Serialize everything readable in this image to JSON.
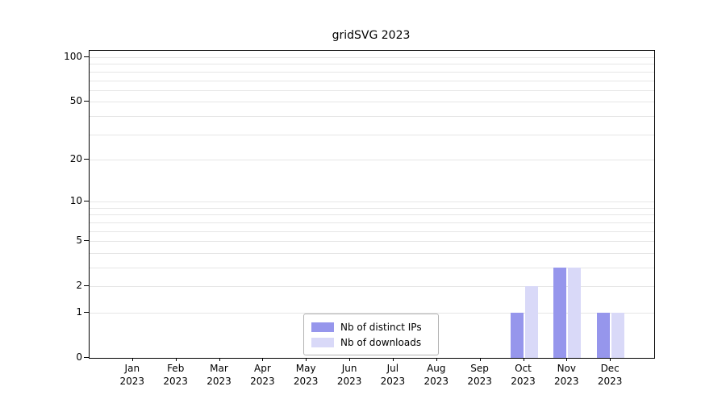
{
  "chart": {
    "title": "gridSVG 2023",
    "chart_data": {
      "type": "bar",
      "title": "gridSVG 2023",
      "scale": "log1p",
      "categories": [
        "Jan",
        "Feb",
        "Mar",
        "Apr",
        "May",
        "Jun",
        "Jul",
        "Aug",
        "Sep",
        "Oct",
        "Nov",
        "Dec"
      ],
      "category_year": "2023",
      "series": [
        {
          "name": "Nb of distinct IPs",
          "color": "#9696ec",
          "values": [
            0,
            0,
            0,
            0,
            0,
            0,
            0,
            0,
            0,
            1,
            3,
            1
          ]
        },
        {
          "name": "Nb of downloads",
          "color": "#d9d9f8",
          "values": [
            0,
            0,
            0,
            0,
            0,
            0,
            0,
            0,
            0,
            2,
            3,
            1
          ]
        }
      ],
      "yticks": [
        0,
        1,
        2,
        5,
        10,
        20,
        50,
        100
      ],
      "ylim": [
        0,
        100
      ],
      "grid": true,
      "gridline_values": [
        1,
        2,
        3,
        4,
        5,
        6,
        7,
        8,
        9,
        10,
        20,
        30,
        40,
        50,
        60,
        70,
        80,
        90,
        100
      ],
      "legend_position": "bottom-center",
      "colors": {
        "grid": "#e6e6e6",
        "axis": "#000000",
        "background": "#ffffff"
      }
    }
  }
}
